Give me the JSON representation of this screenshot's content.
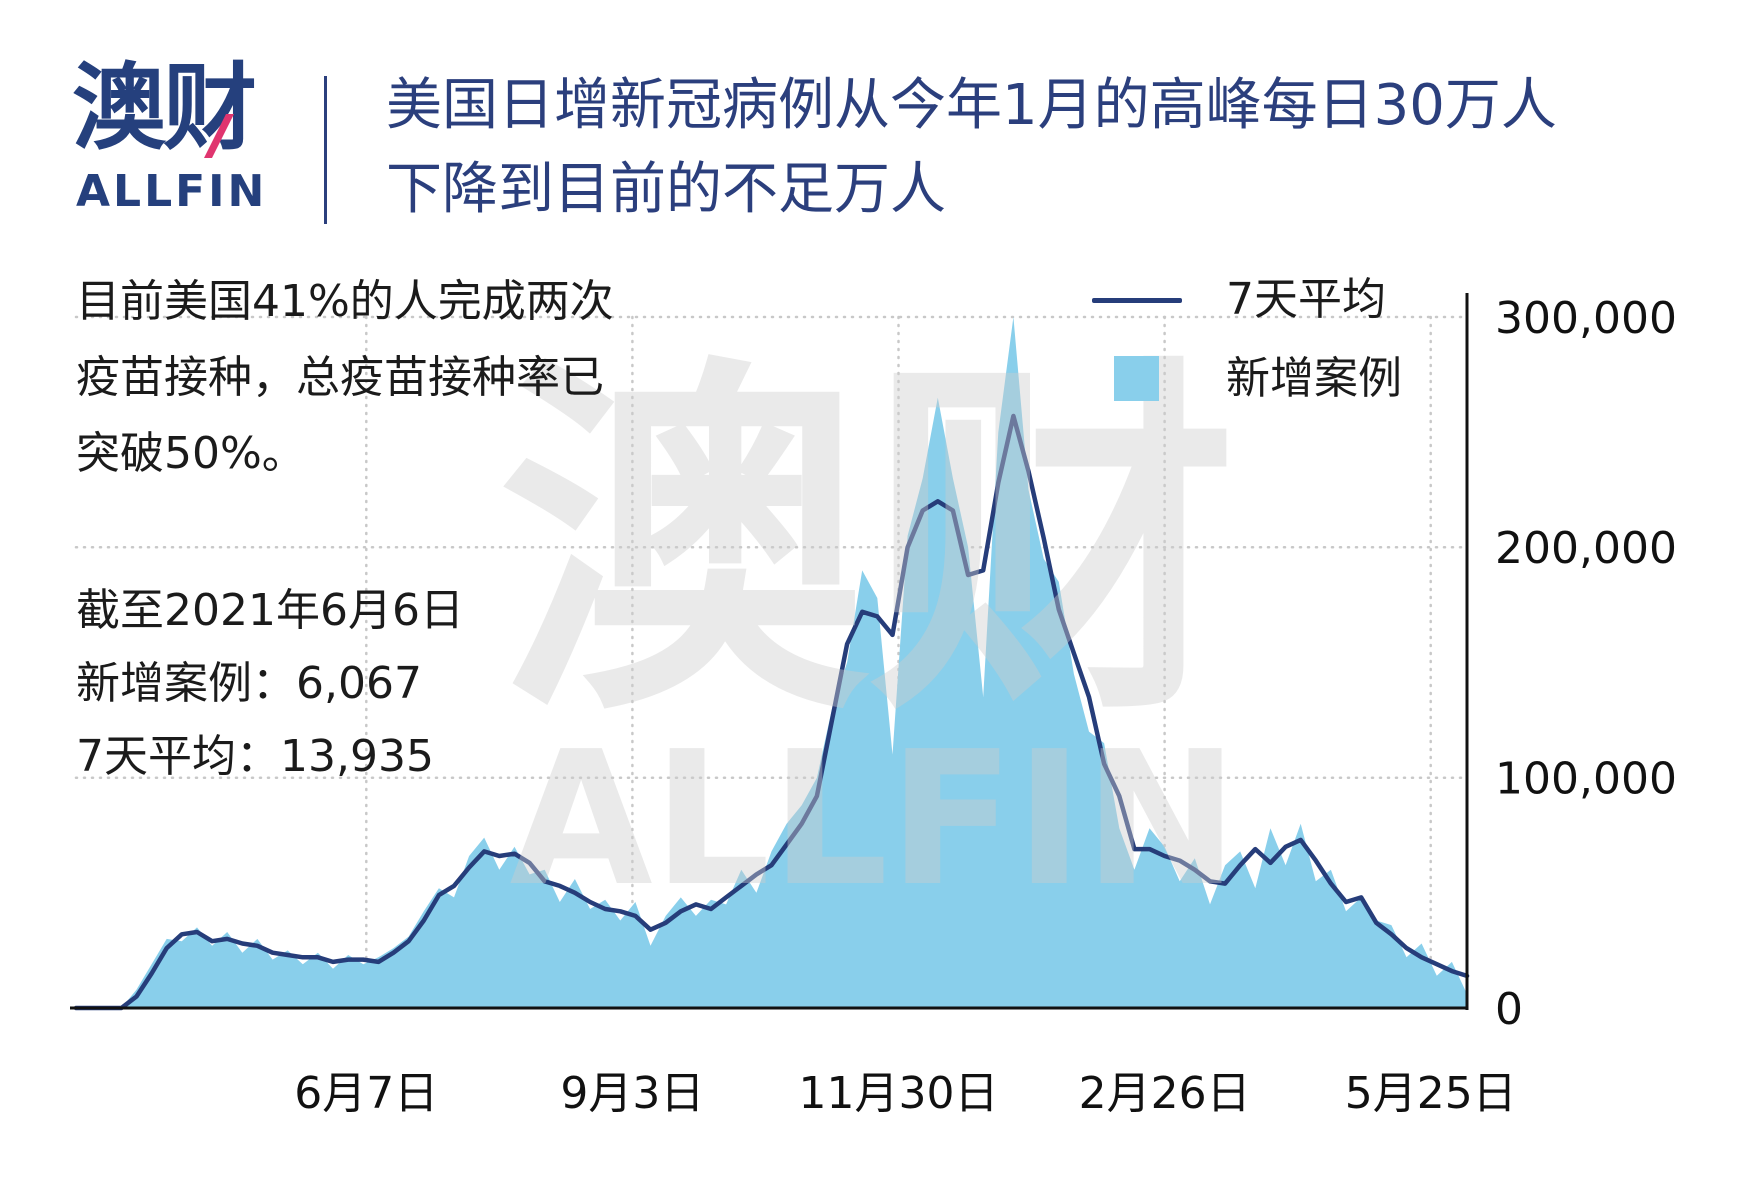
{
  "brand": {
    "logo_cn": "澳财",
    "logo_en": "ALLFIN",
    "watermark_cn": "澳财",
    "watermark_en": "ALLFIN",
    "colors": {
      "navy": "#263d7a",
      "accent": "#e0356f"
    }
  },
  "chart_data": {
    "type": "area",
    "title": [
      "美国日增新冠病例从今年1月的高峰每日30万人",
      "下降到目前的不足万人"
    ],
    "annotations": {
      "note": [
        "目前美国41%的人完成两次",
        "疫苗接种，总疫苗接种率已",
        "突破50%。"
      ],
      "stats": [
        "截至2021年6月6日",
        "新增案例：6,067",
        "7天平均：13,935"
      ]
    },
    "xlabel": "",
    "ylabel": "",
    "xlim": [
      "2020-03-03",
      "2021-06-06"
    ],
    "ylim": [
      0,
      300000
    ],
    "y_axis_side": "right",
    "grid": true,
    "legend_position": "top-right",
    "x_ticks": [
      {
        "date": "2020-06-07",
        "label": "6月7日"
      },
      {
        "date": "2020-09-03",
        "label": "9月3日"
      },
      {
        "date": "2020-11-30",
        "label": "11月30日"
      },
      {
        "date": "2021-02-26",
        "label": "2月26日"
      },
      {
        "date": "2021-05-25",
        "label": "5月25日"
      }
    ],
    "y_ticks": [
      {
        "value": 300000,
        "label": "300,000"
      },
      {
        "value": 200000,
        "label": "200,000"
      },
      {
        "value": 100000,
        "label": "100,000"
      },
      {
        "value": 0,
        "label": "0"
      }
    ],
    "x": [
      "2020-03-03",
      "2020-03-08",
      "2020-03-13",
      "2020-03-18",
      "2020-03-23",
      "2020-03-28",
      "2020-04-02",
      "2020-04-07",
      "2020-04-12",
      "2020-04-17",
      "2020-04-22",
      "2020-04-27",
      "2020-05-02",
      "2020-05-07",
      "2020-05-12",
      "2020-05-17",
      "2020-05-22",
      "2020-05-27",
      "2020-06-01",
      "2020-06-06",
      "2020-06-11",
      "2020-06-16",
      "2020-06-21",
      "2020-06-26",
      "2020-07-01",
      "2020-07-06",
      "2020-07-11",
      "2020-07-16",
      "2020-07-21",
      "2020-07-26",
      "2020-07-31",
      "2020-08-05",
      "2020-08-10",
      "2020-08-15",
      "2020-08-20",
      "2020-08-25",
      "2020-08-30",
      "2020-09-04",
      "2020-09-09",
      "2020-09-14",
      "2020-09-19",
      "2020-09-24",
      "2020-09-29",
      "2020-10-04",
      "2020-10-09",
      "2020-10-14",
      "2020-10-19",
      "2020-10-24",
      "2020-10-29",
      "2020-11-03",
      "2020-11-08",
      "2020-11-13",
      "2020-11-18",
      "2020-11-23",
      "2020-11-28",
      "2020-12-03",
      "2020-12-08",
      "2020-12-13",
      "2020-12-18",
      "2020-12-23",
      "2020-12-28",
      "2021-01-02",
      "2021-01-07",
      "2021-01-12",
      "2021-01-17",
      "2021-01-22",
      "2021-01-27",
      "2021-02-01",
      "2021-02-06",
      "2021-02-11",
      "2021-02-16",
      "2021-02-21",
      "2021-02-26",
      "2021-03-03",
      "2021-03-08",
      "2021-03-13",
      "2021-03-18",
      "2021-03-23",
      "2021-03-28",
      "2021-04-02",
      "2021-04-07",
      "2021-04-12",
      "2021-04-17",
      "2021-04-22",
      "2021-04-27",
      "2021-05-02",
      "2021-05-07",
      "2021-05-12",
      "2021-05-17",
      "2021-05-22",
      "2021-05-27",
      "2021-06-01",
      "2021-06-06"
    ],
    "series": [
      {
        "name": "新增案例",
        "type": "area",
        "color": "#89cfeb",
        "values": [
          0,
          0,
          0,
          0,
          8000,
          19000,
          30000,
          29000,
          35000,
          27000,
          33000,
          24000,
          30000,
          21000,
          25000,
          19000,
          24000,
          17000,
          23000,
          19000,
          22000,
          26000,
          31000,
          42000,
          52000,
          48000,
          66000,
          74000,
          60000,
          70000,
          58000,
          60000,
          46000,
          56000,
          43000,
          47000,
          38000,
          46000,
          27000,
          40000,
          48000,
          40000,
          47000,
          45000,
          60000,
          50000,
          68000,
          80000,
          88000,
          100000,
          130000,
          150000,
          190000,
          178000,
          110000,
          205000,
          230000,
          265000,
          230000,
          200000,
          135000,
          250000,
          300000,
          225000,
          195000,
          185000,
          145000,
          120000,
          115000,
          78000,
          60000,
          78000,
          70000,
          55000,
          65000,
          45000,
          62000,
          68000,
          52000,
          78000,
          62000,
          80000,
          55000,
          60000,
          42000,
          48000,
          38000,
          36000,
          22000,
          28000,
          14000,
          20000,
          6067
        ]
      },
      {
        "name": "7天平均",
        "type": "line",
        "color": "#263d7a",
        "values": [
          0,
          0,
          0,
          0,
          5000,
          15000,
          26000,
          32000,
          33000,
          29000,
          30000,
          28000,
          27000,
          24000,
          23000,
          22000,
          22000,
          20000,
          21000,
          21000,
          20000,
          24000,
          29000,
          38000,
          49000,
          53000,
          61000,
          68000,
          66000,
          67000,
          63000,
          55000,
          53000,
          50000,
          46000,
          43000,
          42000,
          40000,
          34000,
          37000,
          42000,
          45000,
          43000,
          48000,
          53000,
          58000,
          62000,
          71000,
          80000,
          92000,
          125000,
          158000,
          172000,
          170000,
          162000,
          200000,
          216000,
          220000,
          216000,
          188000,
          190000,
          228000,
          257000,
          233000,
          204000,
          173000,
          154000,
          135000,
          106000,
          92000,
          69000,
          69000,
          66000,
          64000,
          60000,
          55000,
          54000,
          62000,
          69000,
          63000,
          70000,
          73000,
          64000,
          54000,
          46000,
          48000,
          37000,
          32000,
          26000,
          22000,
          19000,
          16000,
          13935
        ]
      }
    ]
  }
}
